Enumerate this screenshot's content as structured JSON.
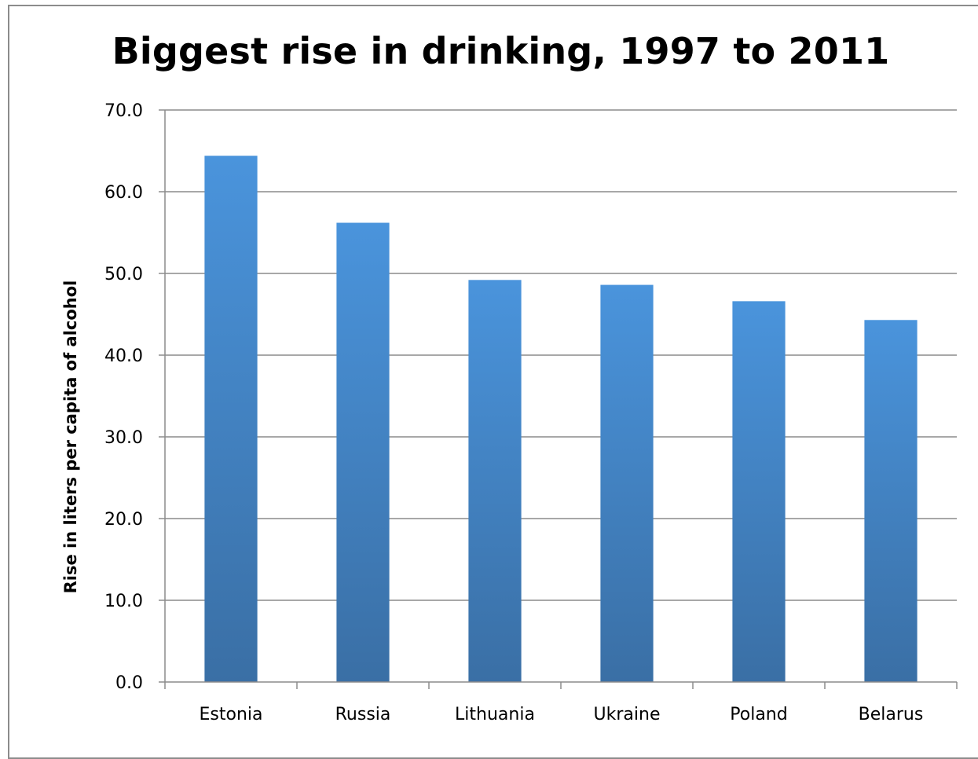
{
  "chart_data": {
    "type": "bar",
    "title": "Biggest rise in drinking, 1997 to 2011",
    "xlabel": "",
    "ylabel": "Rise in liters per capita of alcohol",
    "categories": [
      "Estonia",
      "Russia",
      "Lithuania",
      "Ukraine",
      "Poland",
      "Belarus"
    ],
    "values": [
      64.4,
      56.2,
      49.2,
      48.6,
      46.6,
      44.3
    ],
    "ylim": [
      0,
      70
    ],
    "yticks": [
      "0.0",
      "10.0",
      "20.0",
      "30.0",
      "40.0",
      "50.0",
      "60.0",
      "70.0"
    ],
    "grid": true,
    "legend": "none",
    "colors": {
      "bar_top": "#4a94dc",
      "bar_bottom": "#3a6fa5",
      "grid": "#8c8c8c"
    }
  }
}
